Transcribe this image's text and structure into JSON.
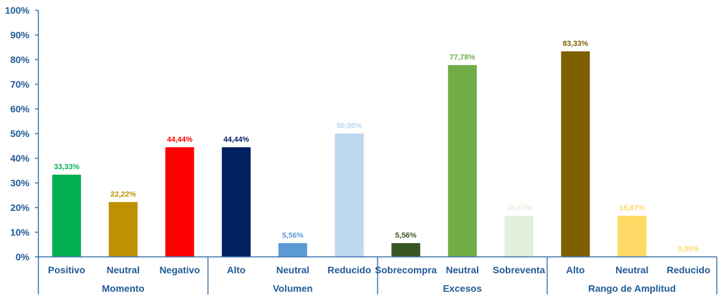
{
  "chart_data": {
    "type": "bar",
    "title": "",
    "xlabel": "",
    "ylabel": "",
    "ylim": [
      0,
      100
    ],
    "yticks": [
      "0%",
      "10%",
      "20%",
      "30%",
      "40%",
      "50%",
      "60%",
      "70%",
      "80%",
      "90%",
      "100%"
    ],
    "grid": false,
    "groups": [
      {
        "name": "Momento",
        "bars": [
          {
            "category": "Positivo",
            "value": 33.33,
            "label": "33,33%",
            "color": "#00b050"
          },
          {
            "category": "Neutral",
            "value": 22.22,
            "label": "22,22%",
            "color": "#bf9000"
          },
          {
            "category": "Negativo",
            "value": 44.44,
            "label": "44,44%",
            "color": "#ff0000"
          }
        ]
      },
      {
        "name": "Volumen",
        "bars": [
          {
            "category": "Alto",
            "value": 44.44,
            "label": "44,44%",
            "color": "#002060"
          },
          {
            "category": "Neutral",
            "value": 5.56,
            "label": "5,56%",
            "color": "#5b9bd5"
          },
          {
            "category": "Reducido",
            "value": 50.0,
            "label": "50,00%",
            "color": "#bdd7ee"
          }
        ]
      },
      {
        "name": "Excesos",
        "bars": [
          {
            "category": "Sobrecompra",
            "value": 5.56,
            "label": "5,56%",
            "color": "#375623"
          },
          {
            "category": "Neutral",
            "value": 77.78,
            "label": "77,78%",
            "color": "#70ad47"
          },
          {
            "category": "Sobreventa",
            "value": 16.67,
            "label": "16,67%",
            "color": "#e2efda"
          }
        ]
      },
      {
        "name": "Rango de Amplitud",
        "bars": [
          {
            "category": "Alto",
            "value": 83.33,
            "label": "83,33%",
            "color": "#7f6000"
          },
          {
            "category": "Neutral",
            "value": 16.67,
            "label": "16,67%",
            "color": "#ffd966"
          },
          {
            "category": "Reducido",
            "value": 0.0,
            "label": "0,00%",
            "color": "#ffd966"
          }
        ]
      }
    ]
  }
}
